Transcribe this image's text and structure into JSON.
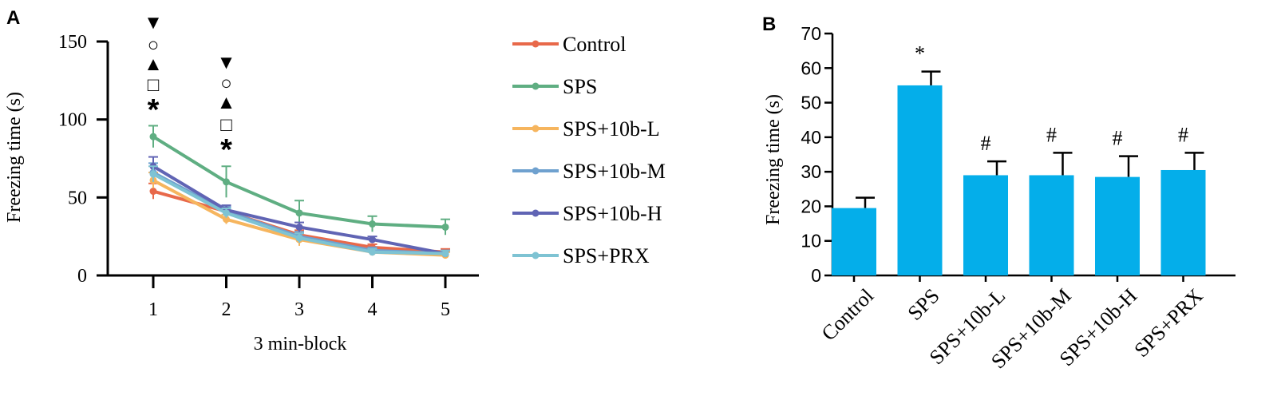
{
  "panels": {
    "a_label": "A",
    "b_label": "B"
  },
  "chart_data": [
    {
      "type": "line",
      "xlabel": "3 min-block",
      "ylabel": "Freezing time (s)",
      "x": [
        1,
        2,
        3,
        4,
        5
      ],
      "xticks": [
        "1",
        "2",
        "3",
        "4",
        "5"
      ],
      "ylim": [
        0,
        150
      ],
      "yticks": [
        "0",
        "50",
        "100",
        "150"
      ],
      "legend_position": "right",
      "series": [
        {
          "name": "Control",
          "color": "#e8694a",
          "values": [
            54,
            41,
            26,
            18,
            15
          ],
          "errors": [
            5,
            3,
            3,
            2,
            2
          ]
        },
        {
          "name": "SPS",
          "color": "#5fae82",
          "values": [
            89,
            60,
            40,
            33,
            31
          ],
          "errors": [
            7,
            10,
            8,
            5,
            5
          ]
        },
        {
          "name": "SPS+10b-L",
          "color": "#f6b55e",
          "values": [
            61,
            36,
            23,
            15,
            13
          ],
          "errors": [
            5,
            3,
            4,
            2,
            2
          ]
        },
        {
          "name": "SPS+10b-M",
          "color": "#6fa1cf",
          "values": [
            66,
            41,
            25,
            16,
            14
          ],
          "errors": [
            6,
            3,
            3,
            2,
            2
          ]
        },
        {
          "name": "SPS+10b-H",
          "color": "#6064b4",
          "values": [
            70,
            42,
            31,
            23,
            14
          ],
          "errors": [
            6,
            3,
            3,
            2,
            2
          ]
        },
        {
          "name": "SPS+PRX",
          "color": "#7ec3d3",
          "values": [
            65,
            40,
            24,
            15,
            14
          ],
          "errors": [
            5,
            3,
            3,
            2,
            2
          ]
        }
      ],
      "annotations": [
        {
          "x": 1,
          "symbols": [
            "▼",
            "○",
            "▲",
            "□",
            "*"
          ]
        },
        {
          "x": 2,
          "symbols": [
            "▼",
            "○",
            "▲",
            "□",
            "*"
          ]
        }
      ]
    },
    {
      "type": "bar",
      "ylabel": "Freezing time (s)",
      "categories": [
        "Control",
        "SPS",
        "SPS+10b-L",
        "SPS+10b-M",
        "SPS+10b-H",
        "SPS+PRX"
      ],
      "values": [
        19.5,
        55,
        29,
        29,
        28.5,
        30.5
      ],
      "errors": [
        3,
        4,
        4,
        6.5,
        6,
        5
      ],
      "annotations": [
        "",
        "*",
        "#",
        "#",
        "#",
        "#"
      ],
      "ylim": [
        0,
        70
      ],
      "yticks": [
        "0",
        "10",
        "20",
        "30",
        "40",
        "50",
        "60",
        "70"
      ],
      "bar_color": "#04aeea"
    }
  ]
}
